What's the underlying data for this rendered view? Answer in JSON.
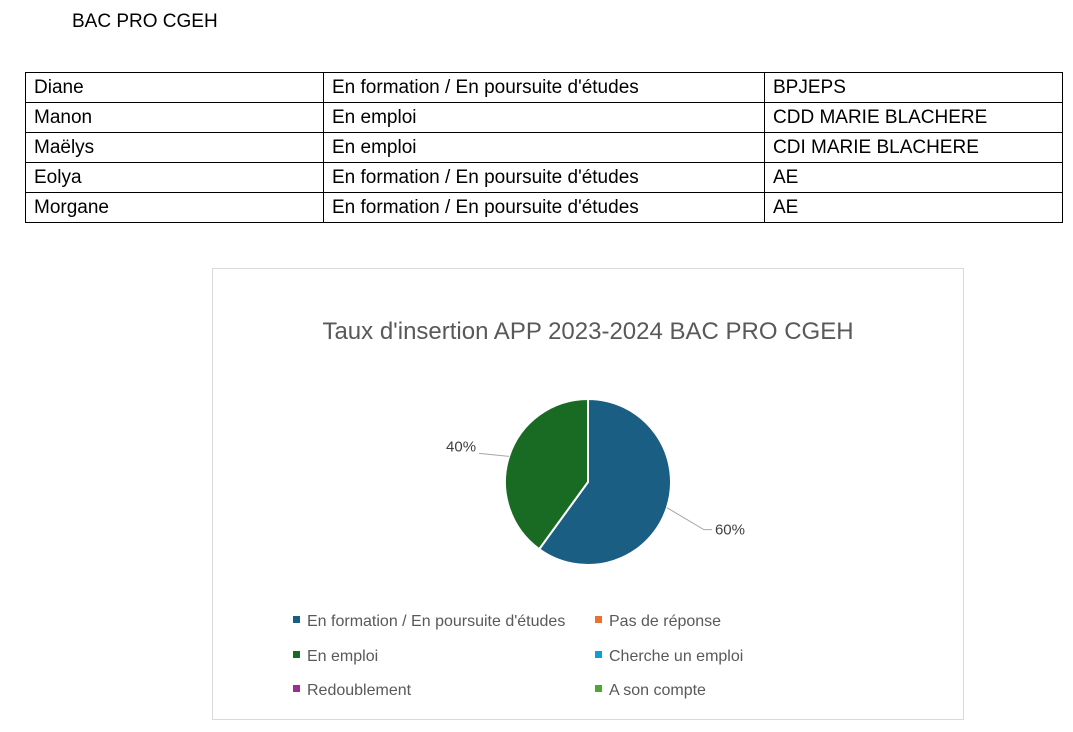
{
  "heading": "BAC PRO CGEH",
  "table": {
    "rows": [
      {
        "name": "Diane",
        "status": "En formation / En poursuite d'études",
        "detail": "BPJEPS"
      },
      {
        "name": "Manon",
        "status": "En emploi",
        "detail": "CDD MARIE BLACHERE"
      },
      {
        "name": "Maëlys",
        "status": "En emploi",
        "detail": "CDI MARIE BLACHERE"
      },
      {
        "name": "Eolya",
        "status": "En formation / En poursuite d'études",
        "detail": "AE"
      },
      {
        "name": "Morgane",
        "status": "En formation / En poursuite d'études",
        "detail": "AE"
      }
    ]
  },
  "chart_data": {
    "type": "pie",
    "title": "Taux d'insertion APP 2023-2024 BAC PRO CGEH",
    "categories": [
      "En formation / En poursuite d'études",
      "Pas de réponse",
      "En emploi",
      "Cherche un emploi",
      "Redoublement",
      "A son compte"
    ],
    "values": [
      60,
      0,
      40,
      0,
      0,
      0
    ],
    "data_labels": [
      "60%",
      "",
      "40%",
      "",
      "",
      ""
    ],
    "colors": [
      "#1a5e83",
      "#e97132",
      "#196b24",
      "#0f9ed5",
      "#a02b93",
      "#4ea72e"
    ],
    "legend_position": "bottom"
  }
}
